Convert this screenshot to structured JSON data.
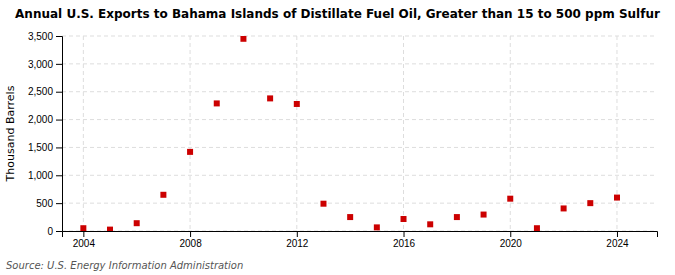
{
  "chart_data": {
    "type": "scatter",
    "title": "Annual U.S. Exports to Bahama Islands of Distillate Fuel Oil, Greater than 15 to 500 ppm Sulfur",
    "ylabel": "Thousand Barrels",
    "annotations": [
      "Source: U.S. Energy Information Administration"
    ],
    "x": [
      2004,
      2005,
      2006,
      2007,
      2008,
      2009,
      2010,
      2011,
      2012,
      2013,
      2014,
      2015,
      2016,
      2017,
      2018,
      2019,
      2020,
      2021,
      2022,
      2023,
      2024
    ],
    "values": [
      50,
      25,
      140,
      650,
      1420,
      2290,
      3450,
      2380,
      2280,
      490,
      250,
      65,
      215,
      120,
      250,
      295,
      580,
      50,
      405,
      500,
      600
    ],
    "color": "#cc0000",
    "marker": "square",
    "xlim": [
      2003.2,
      2025.5
    ],
    "xticks": [
      2004,
      2008,
      2012,
      2016,
      2020,
      2024
    ],
    "ylim": [
      0,
      3500
    ],
    "yticks": [
      0,
      500,
      {
        "value": 1000,
        "label": "1,000"
      },
      {
        "value": 1500,
        "label": "1,500"
      },
      {
        "value": 2000,
        "label": "2,000"
      },
      {
        "value": 2500,
        "label": "2,500"
      },
      {
        "value": 3000,
        "label": "3,000"
      },
      {
        "value": 3500,
        "label": "3,500"
      }
    ],
    "grid": true
  }
}
